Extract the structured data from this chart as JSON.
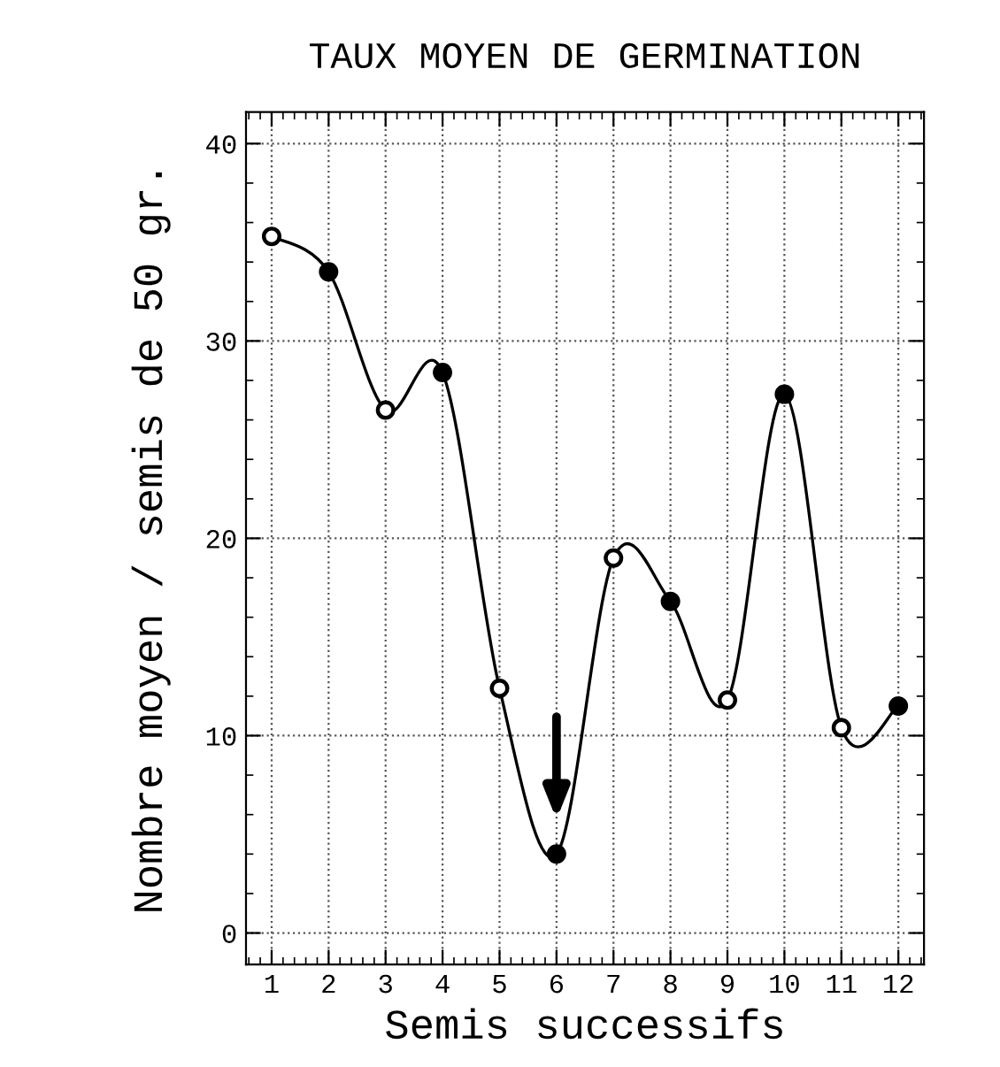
{
  "chart_data": {
    "type": "line",
    "title": "TAUX MOYEN DE GERMINATION",
    "xlabel": "Semis successifs",
    "ylabel": "Nombre moyen / semis de 50 gr.",
    "series": [
      {
        "color": "#000000",
        "colors": [
          "#ffffff",
          "#000000",
          "#ffffff",
          "#000000",
          "#ffffff",
          "#000000",
          "#ffffff",
          "#000000",
          "#ffffff",
          "#000000",
          "#ffffff",
          "#000000"
        ],
        "x": [
          1,
          2,
          3,
          4,
          5,
          6,
          7,
          8,
          9,
          10,
          11,
          12
        ],
        "values": [
          35.3,
          33.5,
          26.5,
          28.4,
          12.4,
          4.0,
          19.0,
          16.8,
          11.8,
          27.3,
          10.4,
          11.5
        ]
      }
    ],
    "marker": "circle",
    "line_style": "solid",
    "xlim": [
      0.55,
      12.45
    ],
    "xticks": [
      1,
      2,
      3,
      4,
      5,
      6,
      7,
      8,
      9,
      10,
      11,
      12
    ],
    "ylim": [
      -1.6,
      41.6
    ],
    "yticks": [
      0,
      10,
      20,
      30,
      40
    ],
    "grid": true,
    "legend": false
  }
}
